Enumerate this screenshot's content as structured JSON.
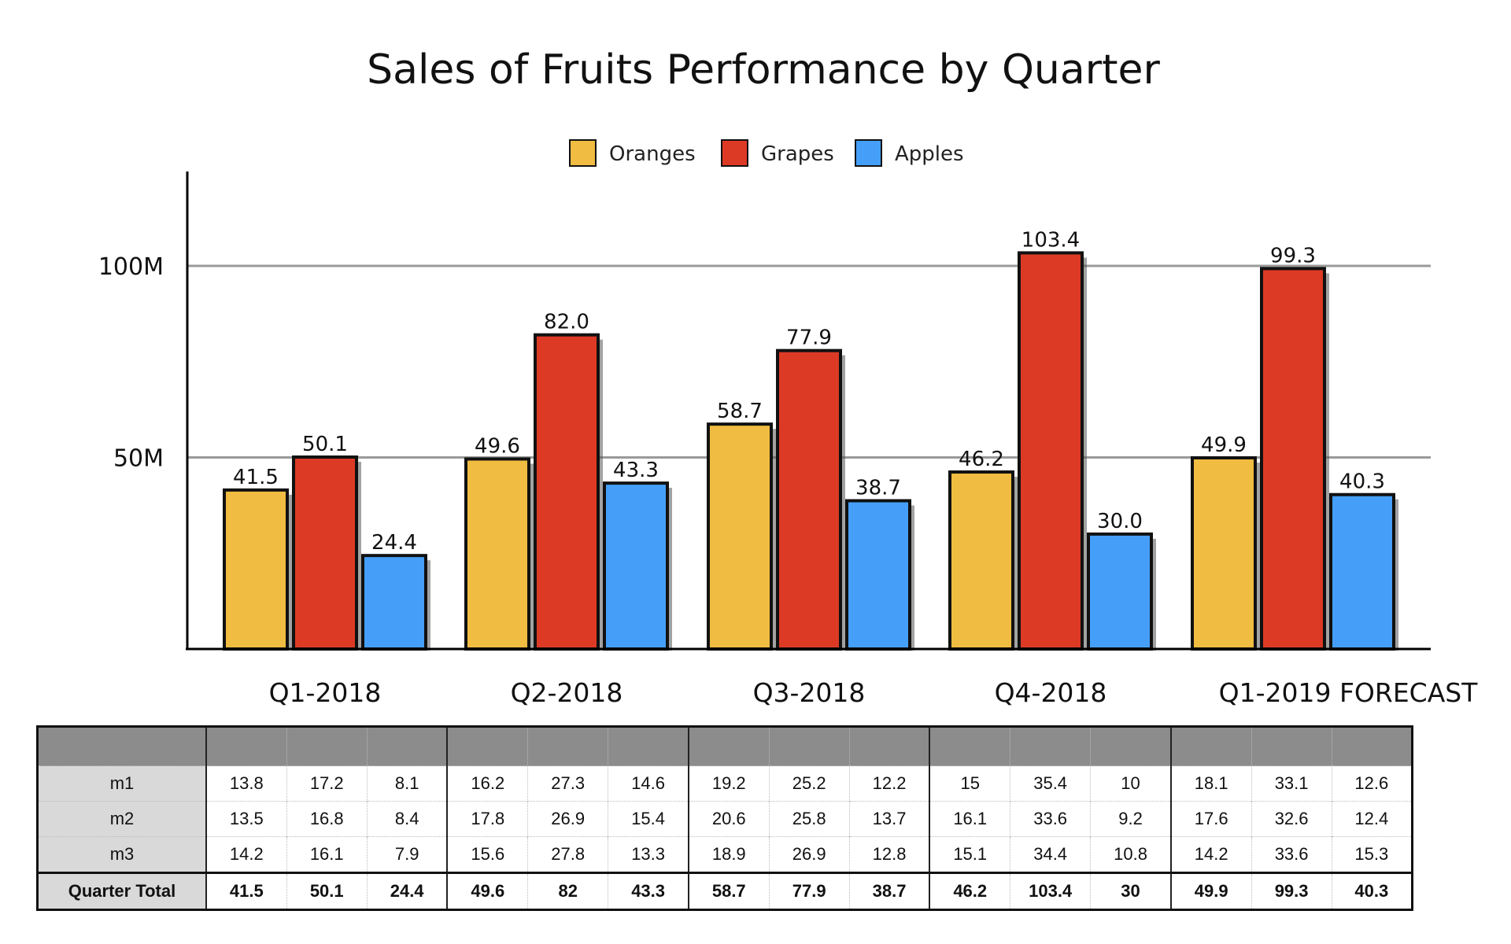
{
  "chart_data": {
    "type": "bar",
    "title": "Sales of Fruits Performance by Quarter",
    "categories": [
      "Q1-2018",
      "Q2-2018",
      "Q3-2018",
      "Q4-2018",
      "Q1-2019 FORECAST"
    ],
    "series": [
      {
        "name": "Oranges",
        "color": "#f0bc41",
        "values": [
          41.5,
          49.6,
          58.7,
          46.2,
          49.9
        ],
        "labels": [
          "41.5",
          "49.6",
          "58.7",
          "46.2",
          "49.9"
        ]
      },
      {
        "name": "Grapes",
        "color": "#dd3a26",
        "values": [
          50.1,
          82.0,
          77.9,
          103.4,
          99.3
        ],
        "labels": [
          "50.1",
          "82.0",
          "77.9",
          "103.4",
          "99.3"
        ]
      },
      {
        "name": "Apples",
        "color": "#459ff8",
        "values": [
          24.4,
          43.3,
          38.7,
          30.0,
          40.3
        ],
        "labels": [
          "24.4",
          "43.3",
          "38.7",
          "30.0",
          "40.3"
        ]
      }
    ],
    "yticks": [
      {
        "value": 50,
        "label": "50M"
      },
      {
        "value": 100,
        "label": "100M"
      }
    ],
    "ylim": [
      0,
      125
    ],
    "grid": true,
    "legend_position": "top-center",
    "xlabel": "",
    "ylabel": ""
  },
  "table": {
    "rows": [
      {
        "label": "m1",
        "cells": [
          "13.8",
          "17.2",
          "8.1",
          "16.2",
          "27.3",
          "14.6",
          "19.2",
          "25.2",
          "12.2",
          "15",
          "35.4",
          "10",
          "18.1",
          "33.1",
          "12.6"
        ]
      },
      {
        "label": "m2",
        "cells": [
          "13.5",
          "16.8",
          "8.4",
          "17.8",
          "26.9",
          "15.4",
          "20.6",
          "25.8",
          "13.7",
          "16.1",
          "33.6",
          "9.2",
          "17.6",
          "32.6",
          "12.4"
        ]
      },
      {
        "label": "m3",
        "cells": [
          "14.2",
          "16.1",
          "7.9",
          "15.6",
          "27.8",
          "13.3",
          "18.9",
          "26.9",
          "12.8",
          "15.1",
          "34.4",
          "10.8",
          "14.2",
          "33.6",
          "15.3"
        ]
      }
    ],
    "total": {
      "label": "Quarter Total",
      "cells": [
        "41.5",
        "50.1",
        "24.4",
        "49.6",
        "82",
        "43.3",
        "58.7",
        "77.9",
        "38.7",
        "46.2",
        "103.4",
        "30",
        "49.9",
        "99.3",
        "40.3"
      ]
    }
  }
}
